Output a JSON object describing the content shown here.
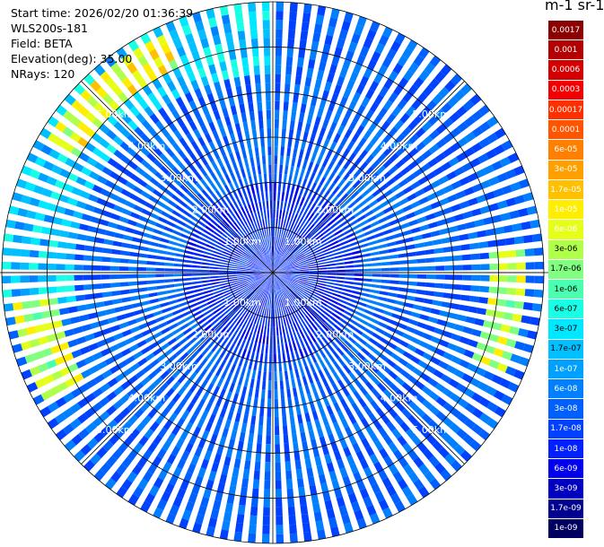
{
  "info": {
    "start_time": "Start time: 2026/02/20 01:36:39",
    "instrument": "WLS200s-181",
    "field": "Field: BETA",
    "elevation": "Elevation(deg): 35.00",
    "nrays": "NRays: 120"
  },
  "colorbar": {
    "title": "m-1 sr-1",
    "levels": [
      {
        "label": "0.0017",
        "color": "#8b0000"
      },
      {
        "label": "0.001",
        "color": "#b30000"
      },
      {
        "label": "0.0006",
        "color": "#d40000"
      },
      {
        "label": "0.0003",
        "color": "#f00000"
      },
      {
        "label": "0.00017",
        "color": "#ff3000"
      },
      {
        "label": "0.0001",
        "color": "#ff5500"
      },
      {
        "label": "6e-05",
        "color": "#ff8000"
      },
      {
        "label": "3e-05",
        "color": "#ffa000"
      },
      {
        "label": "1.7e-05",
        "color": "#ffc000"
      },
      {
        "label": "1e-05",
        "color": "#ffee00"
      },
      {
        "label": "6e-06",
        "color": "#e6ff18"
      },
      {
        "label": "3e-06",
        "color": "#b0ff4a"
      },
      {
        "label": "1.7e-06",
        "color": "#80ff80"
      },
      {
        "label": "1e-06",
        "color": "#4affb0"
      },
      {
        "label": "6e-07",
        "color": "#18ffe6"
      },
      {
        "label": "3e-07",
        "color": "#00e8ff"
      },
      {
        "label": "1.7e-07",
        "color": "#00c0ff"
      },
      {
        "label": "1e-07",
        "color": "#00a0ff"
      },
      {
        "label": "6e-08",
        "color": "#0080ff"
      },
      {
        "label": "3e-08",
        "color": "#0060ff"
      },
      {
        "label": "1.7e-08",
        "color": "#0040ff"
      },
      {
        "label": "1e-08",
        "color": "#0020ff"
      },
      {
        "label": "6e-09",
        "color": "#0000ee"
      },
      {
        "label": "3e-09",
        "color": "#0000c0"
      },
      {
        "label": "1.7e-09",
        "color": "#000090"
      },
      {
        "label": "1e-09",
        "color": "#000060"
      }
    ]
  },
  "chart_data": {
    "type": "heatmap",
    "projection": "polar PPI",
    "n_rays": 120,
    "max_range_km": 6.0,
    "range_rings": [
      {
        "label": "1.00km",
        "km": 1
      },
      {
        "label": "2.00km",
        "km": 2
      },
      {
        "label": "3.00km",
        "km": 3
      },
      {
        "label": "4.00km",
        "km": 4
      },
      {
        "label": "5.00km",
        "km": 5
      }
    ],
    "spokes_deg": [
      0,
      45,
      90,
      135,
      180,
      225,
      270,
      315
    ],
    "colorscale": "log",
    "value_range": [
      1e-09,
      0.0017
    ],
    "background_level": "3e-08",
    "features": [
      {
        "description": "high-backscatter arc",
        "azimuth_deg": [
          300,
          335
        ],
        "range_km": [
          5.0,
          5.7
        ],
        "level": "1e-05"
      },
      {
        "description": "high-backscatter arc",
        "azimuth_deg": [
          85,
          115
        ],
        "range_km": [
          4.8,
          5.6
        ],
        "level": "6e-06"
      },
      {
        "description": "high-backscatter arc",
        "azimuth_deg": [
          240,
          265
        ],
        "range_km": [
          4.9,
          5.8
        ],
        "level": "6e-06"
      },
      {
        "description": "enhanced-return band",
        "azimuth_deg": [
          260,
          360
        ],
        "range_km": [
          4.5,
          6.0
        ],
        "level": "3e-07"
      },
      {
        "description": "low-return core",
        "azimuth_deg": [
          0,
          360
        ],
        "range_km": [
          0,
          2.0
        ],
        "level": "1e-08"
      }
    ]
  }
}
